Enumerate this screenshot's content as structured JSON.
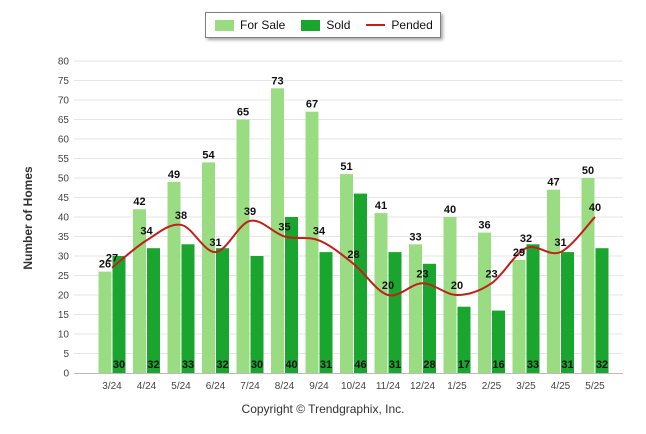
{
  "legend": {
    "for_sale": "For Sale",
    "sold": "Sold",
    "pended": "Pended"
  },
  "copyright": "Copyright © Trendgraphix, Inc.",
  "colors": {
    "for_sale": "#9ADC82",
    "sold": "#1AA52E",
    "pended": "#C0201A",
    "grid": "#E6E6E6"
  },
  "chart_data": {
    "type": "bar",
    "title": "",
    "xlabel": "",
    "ylabel": "Number of Homes",
    "ylim": [
      0,
      80
    ],
    "yticks": [
      0,
      5,
      10,
      15,
      20,
      25,
      30,
      35,
      40,
      45,
      50,
      55,
      60,
      65,
      70,
      75,
      80
    ],
    "grid": true,
    "legend_position": "top-center",
    "categories": [
      "3/24",
      "4/24",
      "5/24",
      "6/24",
      "7/24",
      "8/24",
      "9/24",
      "10/24",
      "11/24",
      "12/24",
      "1/25",
      "2/25",
      "3/25",
      "4/25",
      "5/25"
    ],
    "series": [
      {
        "name": "For Sale",
        "type": "bar",
        "values": [
          26,
          42,
          49,
          54,
          65,
          73,
          67,
          51,
          41,
          33,
          40,
          36,
          29,
          47,
          50
        ]
      },
      {
        "name": "Sold",
        "type": "bar",
        "values": [
          30,
          32,
          33,
          32,
          30,
          40,
          31,
          46,
          31,
          28,
          17,
          16,
          33,
          31,
          32
        ]
      },
      {
        "name": "Pended",
        "type": "line",
        "values": [
          27,
          34,
          38,
          31,
          39,
          35,
          34,
          28,
          20,
          23,
          20,
          23,
          32,
          31,
          40
        ]
      }
    ]
  }
}
